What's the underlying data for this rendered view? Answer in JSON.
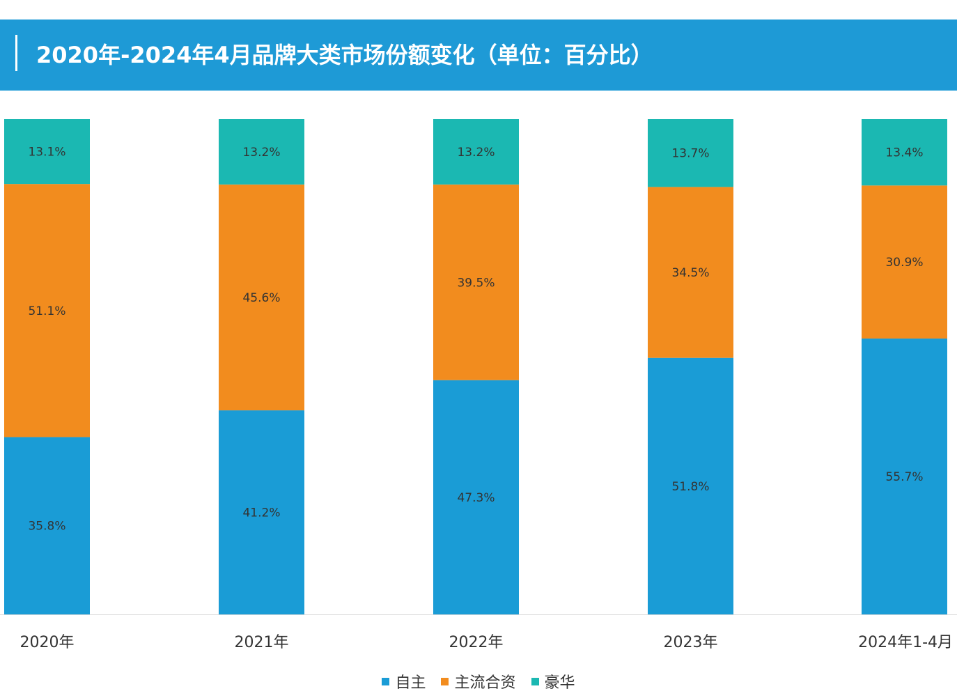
{
  "header": {
    "title": "2020年-2024年4月品牌大类市场份额变化（单位：百分比）"
  },
  "colors": {
    "header_bg": "#1e9ad6",
    "自主": "#1a9cd6",
    "主流合资": "#f28c1e",
    "豪华": "#1bb8b2"
  },
  "chart_data": {
    "type": "bar",
    "stacked": true,
    "title": "2020年-2024年4月品牌大类市场份额变化（单位：百分比）",
    "categories": [
      "2020年",
      "2021年",
      "2022年",
      "2023年",
      "2024年1-4月"
    ],
    "series": [
      {
        "name": "自主",
        "values": [
          35.8,
          41.2,
          47.3,
          51.8,
          55.7
        ],
        "labels": [
          "35.8%",
          "41.2%",
          "47.3%",
          "51.8%",
          "55.7%"
        ],
        "color": "#1a9cd6"
      },
      {
        "name": "主流合资",
        "values": [
          51.1,
          45.6,
          39.5,
          34.5,
          30.9
        ],
        "labels": [
          "51.1%",
          "45.6%",
          "39.5%",
          "34.5%",
          "30.9%"
        ],
        "color": "#f28c1e"
      },
      {
        "name": "豪华",
        "values": [
          13.1,
          13.2,
          13.2,
          13.7,
          13.4
        ],
        "labels": [
          "13.1%",
          "13.2%",
          "13.2%",
          "13.7%",
          "13.4%"
        ],
        "color": "#1bb8b2"
      }
    ],
    "ylim": [
      0,
      100
    ],
    "grid": false,
    "legend": "bottom-center"
  },
  "legend": {
    "items": [
      {
        "label": "自主",
        "color": "#1a9cd6"
      },
      {
        "label": "主流合资",
        "color": "#f28c1e"
      },
      {
        "label": "豪华",
        "color": "#1bb8b2"
      }
    ]
  }
}
